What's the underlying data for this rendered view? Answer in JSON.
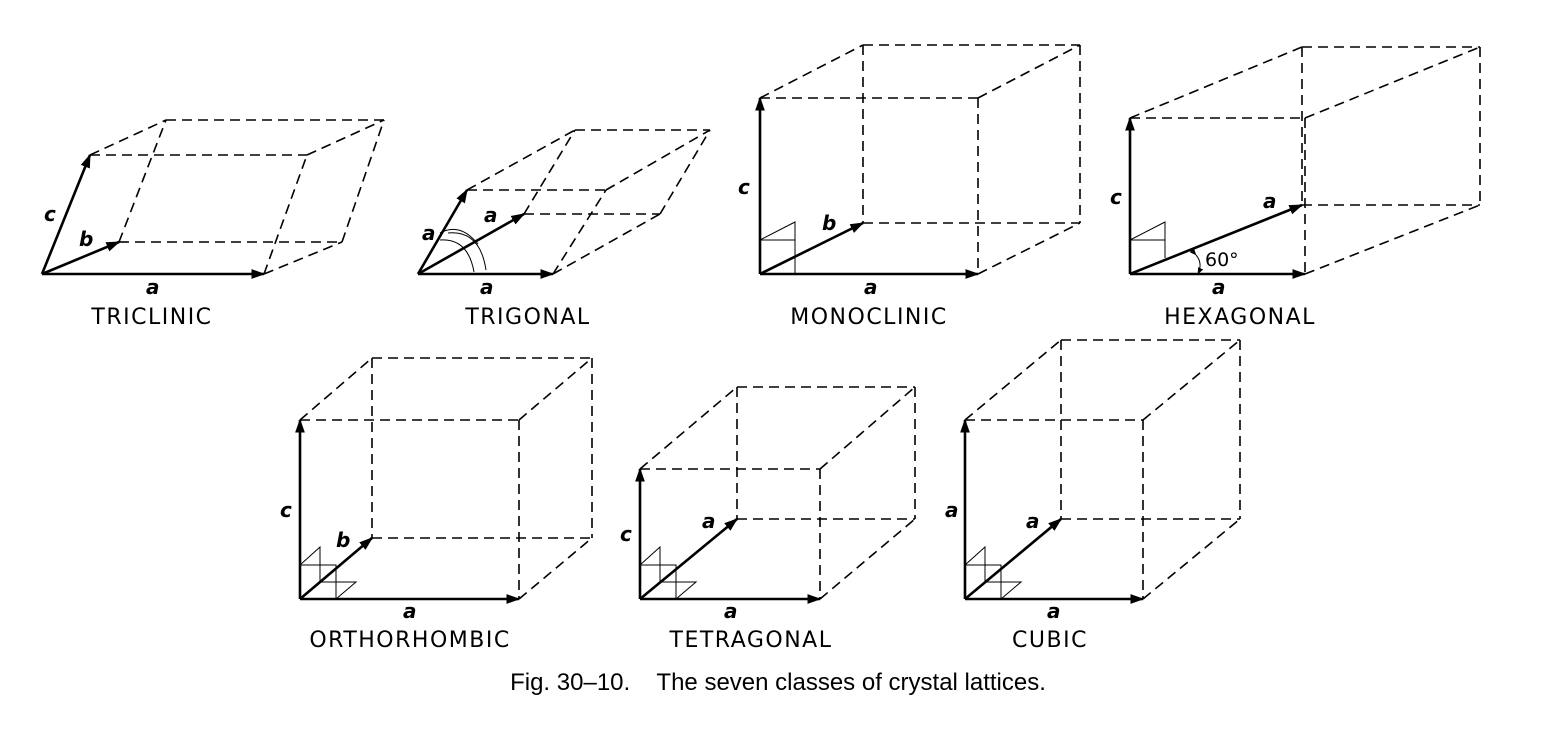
{
  "caption": "Fig. 30–10.    The seven classes of crystal lattices.",
  "lattices": [
    {
      "name": "TRICLINIC",
      "vectors": [
        "a",
        "b",
        "c"
      ]
    },
    {
      "name": "TRIGONAL",
      "vectors": [
        "a",
        "a",
        "a"
      ]
    },
    {
      "name": "MONOCLINIC",
      "vectors": [
        "a",
        "b",
        "c"
      ]
    },
    {
      "name": "HEXAGONAL",
      "vectors": [
        "a",
        "a",
        "c"
      ],
      "angle_label": "60°"
    },
    {
      "name": "ORTHORHOMBIC",
      "vectors": [
        "a",
        "b",
        "c"
      ]
    },
    {
      "name": "TETRAGONAL",
      "vectors": [
        "a",
        "a",
        "c"
      ]
    },
    {
      "name": "CUBIC",
      "vectors": [
        "a",
        "a",
        "a"
      ]
    }
  ]
}
